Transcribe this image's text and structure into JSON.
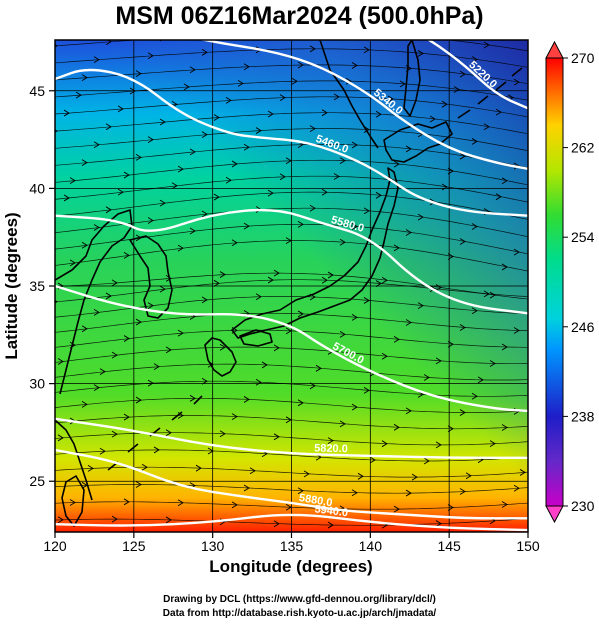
{
  "title": "MSM 06Z16Mar2024 (500.0hPa)",
  "x_axis": {
    "label": "Longitude (degrees)",
    "ticks": [
      "120",
      "125",
      "130",
      "135",
      "140",
      "145",
      "150"
    ],
    "range": [
      120,
      150
    ]
  },
  "y_axis": {
    "label": "Latitude  (degrees)",
    "ticks": [
      "25",
      "30",
      "35",
      "40",
      "45"
    ],
    "range": [
      22.4,
      47.6
    ]
  },
  "colorbar": {
    "ticks": [
      "230",
      "238",
      "246",
      "254",
      "262",
      "270"
    ],
    "range": [
      230,
      270
    ],
    "colors": [
      "#c800c8",
      "#1e1ec8",
      "#00c8ff",
      "#00dc8c",
      "#32dc32",
      "#b4e600",
      "#ffd200",
      "#ff6400",
      "#ff0000"
    ]
  },
  "contours": [
    {
      "label": "5940.0",
      "points": [
        [
          120,
          22.8
        ],
        [
          125,
          22.7
        ],
        [
          130,
          22.9
        ],
        [
          135,
          23.4
        ],
        [
          140,
          22.9
        ],
        [
          145,
          22.6
        ],
        [
          150,
          22.5
        ]
      ]
    },
    {
      "label": "5880.0",
      "points": [
        [
          120,
          26.6
        ],
        [
          124,
          26.0
        ],
        [
          128,
          24.7
        ],
        [
          132,
          24.2
        ],
        [
          135,
          23.9
        ],
        [
          138,
          23.5
        ],
        [
          142,
          23.3
        ],
        [
          146,
          23.1
        ],
        [
          150,
          23.1
        ]
      ]
    },
    {
      "label": "5820.0",
      "points": [
        [
          120,
          28.2
        ],
        [
          125,
          27.6
        ],
        [
          130,
          26.8
        ],
        [
          135,
          26.4
        ],
        [
          140,
          26.3
        ],
        [
          145,
          26.2
        ],
        [
          150,
          26.2
        ]
      ]
    },
    {
      "label": "5700.0",
      "points": [
        [
          120,
          35.0
        ],
        [
          124,
          34.0
        ],
        [
          128,
          33.5
        ],
        [
          132,
          33.6
        ],
        [
          135,
          33.0
        ],
        [
          137,
          31.9
        ],
        [
          140,
          30.6
        ],
        [
          144,
          29.3
        ],
        [
          148,
          28.7
        ],
        [
          150,
          28.6
        ]
      ]
    },
    {
      "label": "5580.0",
      "points": [
        [
          120,
          38.6
        ],
        [
          124,
          38.4
        ],
        [
          126,
          37.6
        ],
        [
          130,
          38.7
        ],
        [
          134,
          39.0
        ],
        [
          137,
          38.2
        ],
        [
          140,
          37.5
        ],
        [
          143,
          35.2
        ],
        [
          146,
          34.0
        ],
        [
          150,
          33.6
        ]
      ]
    },
    {
      "label": "5460.0",
      "points": [
        [
          120,
          45.6
        ],
        [
          122,
          46.2
        ],
        [
          125,
          45.7
        ],
        [
          128,
          43.8
        ],
        [
          131,
          42.8
        ],
        [
          133,
          42.6
        ],
        [
          136,
          42.4
        ],
        [
          139,
          41.5
        ],
        [
          141,
          40.6
        ],
        [
          143,
          39.5
        ],
        [
          146,
          38.8
        ],
        [
          150,
          38.6
        ]
      ]
    },
    {
      "label": "5340.0",
      "points": [
        [
          126,
          48.2
        ],
        [
          130,
          47.5
        ],
        [
          134,
          47.0
        ],
        [
          137,
          46.2
        ],
        [
          140,
          44.8
        ],
        [
          142,
          43.5
        ],
        [
          145,
          42.0
        ],
        [
          148,
          41.3
        ],
        [
          150,
          41.0
        ]
      ]
    },
    {
      "label": "5220.0",
      "points": [
        [
          142,
          48.4
        ],
        [
          144,
          47.5
        ],
        [
          146,
          46.3
        ],
        [
          148,
          44.8
        ],
        [
          150,
          44.1
        ]
      ]
    }
  ],
  "credits": [
    "Drawing by DCL (https://www.gfd-dennou.org/library/dcl/)",
    "Data from http://database.rish.kyoto-u.ac.jp/arch/jmadata/"
  ]
}
